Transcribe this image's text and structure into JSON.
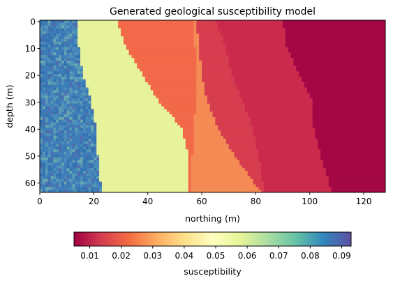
{
  "chart_data": {
    "type": "heatmap",
    "title": "Generated geological susceptibility model",
    "xlabel": "northing (m)",
    "ylabel": "depth (m)",
    "xlim": [
      0,
      128
    ],
    "ylim": [
      64,
      0
    ],
    "xticks": [
      "0",
      "20",
      "40",
      "60",
      "80",
      "100",
      "120"
    ],
    "yticks": [
      "0",
      "10",
      "20",
      "30",
      "40",
      "50",
      "60"
    ],
    "grid": false,
    "colormap": "Spectral",
    "colorbar": {
      "label": "susceptibility",
      "orientation": "horizontal",
      "range": [
        0.005,
        0.093
      ],
      "ticks": [
        "0.01",
        "0.02",
        "0.03",
        "0.04",
        "0.05",
        "0.06",
        "0.07",
        "0.08",
        "0.09"
      ]
    },
    "grid_size": {
      "cols": 128,
      "rows": 64
    },
    "layers": [
      {
        "value": 0.085,
        "color": "#3f7fb8",
        "note": "noisy"
      },
      {
        "value": 0.055,
        "color": "#e7f39a"
      },
      {
        "value": 0.024,
        "color": "#f2694a"
      },
      {
        "value": 0.019,
        "color": "#f58b54"
      },
      {
        "value": 0.013,
        "color": "#d63d4f"
      },
      {
        "value": 0.011,
        "color": "#cc2a4c"
      },
      {
        "value": 0.006,
        "color": "#a30744"
      }
    ],
    "boundaries": [
      {
        "between": [
          0,
          1
        ],
        "depth": [
          0,
          10,
          20,
          30,
          40,
          50,
          60,
          64
        ],
        "northing": [
          14,
          14.5,
          16,
          19,
          21,
          21.5,
          22.5,
          23.5
        ]
      },
      {
        "between": [
          1,
          2
        ],
        "depth": [
          0,
          10,
          20,
          30,
          40,
          50,
          60,
          64
        ],
        "northing": [
          28.5,
          32,
          38,
          44,
          52.5,
          55,
          55.5,
          55.5
        ]
      },
      {
        "between": [
          2,
          3
        ],
        "depth": [
          0,
          10,
          20,
          30,
          40,
          50,
          60,
          64
        ],
        "northing": [
          58,
          59,
          60,
          62,
          66,
          72,
          79,
          82
        ]
      },
      {
        "between": [
          3,
          4
        ],
        "depth": [
          0,
          10,
          20,
          30,
          40,
          50,
          60,
          64
        ],
        "northing": [
          57,
          57.5,
          58,
          58,
          57,
          56.5,
          56,
          56
        ]
      },
      {
        "between": [
          4,
          5
        ],
        "depth": [
          0,
          10,
          20,
          30,
          40,
          50,
          60,
          64
        ],
        "northing": [
          65,
          69,
          71,
          75,
          79,
          81,
          82.5,
          83
        ]
      },
      {
        "between": [
          5,
          6
        ],
        "depth": [
          0,
          10,
          20,
          30,
          40,
          50,
          60,
          64
        ],
        "northing": [
          90,
          91.5,
          96,
          101,
          101.5,
          104,
          107,
          108
        ]
      }
    ]
  }
}
